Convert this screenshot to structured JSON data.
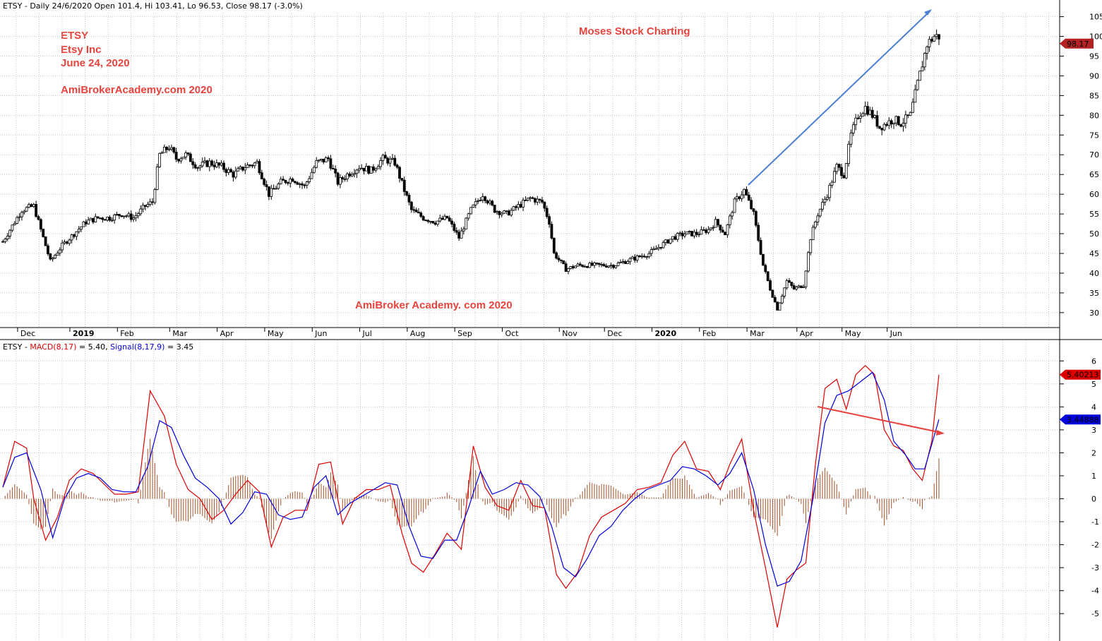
{
  "header": {
    "price": "ETSY - Daily 24/6/2020 Open 101.4, Hi 103.41, Lo 96.53, Close 98.17 (-3.0%)",
    "macd_prefix": "ETSY - ",
    "macd_macd": "MACD(8,17)",
    "macd_macd_val": " = 5.40, ",
    "macd_signal": "Signal(8,17,9)",
    "macd_signal_val": " = 3.45"
  },
  "annotations": {
    "l1": "ETSY",
    "l2": "Etsy Inc",
    "l3": "June 24, 2020",
    "l4": "AmiBrokerAcademy.com  2020",
    "watermark_top": "Moses Stock Charting",
    "watermark_bottom": "AmiBroker Academy. com  2020"
  },
  "colors": {
    "annotation": "#e8423c",
    "macd": "#dd0000",
    "signal": "#0000dd",
    "histogram": "#a0522d",
    "trend_up": "#4a7fd4",
    "trend_down": "#e8423c",
    "last_price_tag": "#b22222",
    "grid": "#c8c8c8"
  },
  "chart_data": [
    {
      "type": "candlestick",
      "symbol": "ETSY",
      "last_value_tag": "98.17",
      "y_ticks": [
        "105",
        "100",
        "95",
        "90",
        "85",
        "80",
        "75",
        "70",
        "65",
        "60",
        "55",
        "50",
        "45",
        "40",
        "35",
        "30"
      ],
      "ylim": [
        28,
        106
      ],
      "x_labels": [
        "Dec",
        "2019",
        "Feb",
        "Mar",
        "Apr",
        "May",
        "Jun",
        "Jul",
        "Aug",
        "Sep",
        "Oct",
        "Nov",
        "Dec",
        "2020",
        "Feb",
        "Mar",
        "Apr",
        "May",
        "Jun"
      ],
      "x_label_pos": [
        0.8,
        3,
        5,
        7.2,
        9.2,
        11.2,
        13.2,
        15.2,
        17.2,
        19.2,
        21.2,
        23.6,
        25.5,
        27.5,
        29.5,
        31.5,
        33.6,
        35.5,
        37.4
      ],
      "close_path": [
        [
          0,
          48
        ],
        [
          0.4,
          52
        ],
        [
          0.8,
          56
        ],
        [
          1.3,
          57
        ],
        [
          1.6,
          51
        ],
        [
          2,
          43
        ],
        [
          2.5,
          47
        ],
        [
          3,
          50
        ],
        [
          3.5,
          53
        ],
        [
          4,
          54
        ],
        [
          4.5,
          54
        ],
        [
          5,
          55
        ],
        [
          5.5,
          54
        ],
        [
          6,
          57
        ],
        [
          6.3,
          58
        ],
        [
          6.6,
          70
        ],
        [
          7,
          72
        ],
        [
          7.3,
          69
        ],
        [
          7.7,
          70
        ],
        [
          8.2,
          67
        ],
        [
          8.7,
          68
        ],
        [
          9.2,
          67
        ],
        [
          9.7,
          65
        ],
        [
          10.2,
          67
        ],
        [
          10.7,
          68
        ],
        [
          11.2,
          60
        ],
        [
          11.7,
          63
        ],
        [
          12.2,
          64
        ],
        [
          12.7,
          62
        ],
        [
          13.2,
          68
        ],
        [
          13.7,
          69
        ],
        [
          14.1,
          63
        ],
        [
          14.5,
          65
        ],
        [
          15,
          67
        ],
        [
          15.5,
          66
        ],
        [
          16,
          69
        ],
        [
          16.5,
          68
        ],
        [
          16.9,
          61
        ],
        [
          17.2,
          56
        ],
        [
          17.7,
          54
        ],
        [
          18.2,
          53
        ],
        [
          18.7,
          54
        ],
        [
          19.2,
          49
        ],
        [
          19.7,
          56
        ],
        [
          20.2,
          60
        ],
        [
          20.7,
          56
        ],
        [
          21.2,
          55
        ],
        [
          21.7,
          57
        ],
        [
          22.2,
          59
        ],
        [
          22.7,
          58
        ],
        [
          23,
          53
        ],
        [
          23.2,
          45
        ],
        [
          23.7,
          41
        ],
        [
          24.2,
          42
        ],
        [
          24.7,
          42
        ],
        [
          25.2,
          42
        ],
        [
          25.7,
          42
        ],
        [
          26.2,
          43
        ],
        [
          26.7,
          44
        ],
        [
          27.2,
          45
        ],
        [
          27.7,
          47
        ],
        [
          28.2,
          49
        ],
        [
          28.7,
          50
        ],
        [
          29.2,
          50
        ],
        [
          29.7,
          51
        ],
        [
          30,
          53
        ],
        [
          30.4,
          50
        ],
        [
          30.8,
          58
        ],
        [
          31.2,
          61
        ],
        [
          31.6,
          55
        ],
        [
          32,
          42
        ],
        [
          32.3,
          36
        ],
        [
          32.6,
          31
        ],
        [
          33,
          38
        ],
        [
          33.3,
          36
        ],
        [
          33.7,
          37
        ],
        [
          34,
          49
        ],
        [
          34.3,
          55
        ],
        [
          34.7,
          60
        ],
        [
          35.1,
          67
        ],
        [
          35.4,
          65
        ],
        [
          35.7,
          75
        ],
        [
          36,
          80
        ],
        [
          36.3,
          82
        ],
        [
          36.6,
          80
        ],
        [
          36.9,
          77
        ],
        [
          37.2,
          78
        ],
        [
          37.5,
          79
        ],
        [
          37.8,
          78
        ],
        [
          38.2,
          80
        ],
        [
          38.5,
          88
        ],
        [
          38.9,
          98
        ],
        [
          39.2,
          100
        ]
      ]
    },
    {
      "type": "line",
      "symbol": "ETSY",
      "last_value_tags": {
        "macd": "5.40213",
        "signal": "3.44888"
      },
      "y_ticks": [
        "6",
        "5",
        "4",
        "3",
        "2",
        "1",
        "0",
        "-1",
        "-2",
        "-3",
        "-4",
        "-5"
      ],
      "ylim": [
        -6.1,
        6.5
      ],
      "series": [
        {
          "name": "MACD(8,17)",
          "points": [
            [
              0,
              0.5
            ],
            [
              0.5,
              2.5
            ],
            [
              1,
              2.2
            ],
            [
              1.3,
              0
            ],
            [
              1.8,
              -1.8
            ],
            [
              2.3,
              -0.8
            ],
            [
              2.8,
              0.8
            ],
            [
              3.3,
              1.3
            ],
            [
              3.8,
              1.1
            ],
            [
              4.3,
              0.6
            ],
            [
              4.7,
              0.2
            ],
            [
              5.2,
              0.2
            ],
            [
              5.7,
              0.3
            ],
            [
              6.2,
              4.7
            ],
            [
              6.8,
              3.6
            ],
            [
              7.3,
              1.5
            ],
            [
              7.8,
              0.4
            ],
            [
              8.3,
              0
            ],
            [
              8.8,
              -0.9
            ],
            [
              9.3,
              -0.5
            ],
            [
              9.8,
              0.2
            ],
            [
              10.3,
              0.8
            ],
            [
              10.8,
              0.3
            ],
            [
              11.3,
              -2.1
            ],
            [
              11.8,
              -0.8
            ],
            [
              12.3,
              -0.5
            ],
            [
              12.8,
              -0.5
            ],
            [
              13.3,
              1.5
            ],
            [
              13.8,
              1.6
            ],
            [
              14.3,
              -1.1
            ],
            [
              14.8,
              0
            ],
            [
              15.3,
              0.4
            ],
            [
              15.8,
              0.4
            ],
            [
              16.3,
              0.6
            ],
            [
              16.8,
              -1.5
            ],
            [
              17.2,
              -2.8
            ],
            [
              17.7,
              -3.2
            ],
            [
              18.2,
              -2.4
            ],
            [
              18.7,
              -1.5
            ],
            [
              19.3,
              -2.2
            ],
            [
              19.8,
              2.3
            ],
            [
              20.3,
              0.5
            ],
            [
              20.8,
              -0.3
            ],
            [
              21.3,
              -0.5
            ],
            [
              21.8,
              0.8
            ],
            [
              22.3,
              -0.3
            ],
            [
              22.8,
              -0.4
            ],
            [
              23.3,
              -3.3
            ],
            [
              23.7,
              -3.9
            ],
            [
              24.2,
              -3.2
            ],
            [
              24.7,
              -1.6
            ],
            [
              25.2,
              -0.8
            ],
            [
              25.7,
              -0.5
            ],
            [
              26.2,
              -0.2
            ],
            [
              26.7,
              0.4
            ],
            [
              27.2,
              0.5
            ],
            [
              27.7,
              0.7
            ],
            [
              28.2,
              1.9
            ],
            [
              28.7,
              2.5
            ],
            [
              29.2,
              1.3
            ],
            [
              29.7,
              1.2
            ],
            [
              30.2,
              0.4
            ],
            [
              30.6,
              1.5
            ],
            [
              31.1,
              2.6
            ],
            [
              31.6,
              -0.5
            ],
            [
              32.1,
              -3
            ],
            [
              32.6,
              -5.6
            ],
            [
              33,
              -3.5
            ],
            [
              33.4,
              -3.1
            ],
            [
              33.8,
              -2.8
            ],
            [
              34.2,
              1.5
            ],
            [
              34.6,
              4.8
            ],
            [
              35.1,
              5.2
            ],
            [
              35.5,
              3.9
            ],
            [
              35.9,
              5.4
            ],
            [
              36.3,
              5.8
            ],
            [
              36.7,
              5.4
            ],
            [
              37.1,
              3
            ],
            [
              37.5,
              2.3
            ],
            [
              37.9,
              2.1
            ],
            [
              38.3,
              1.3
            ],
            [
              38.7,
              0.8
            ],
            [
              39.1,
              2.5
            ],
            [
              39.4,
              5.4
            ]
          ]
        },
        {
          "name": "Signal(8,17,9)",
          "points": [
            [
              0,
              0.5
            ],
            [
              0.5,
              1.8
            ],
            [
              1,
              2
            ],
            [
              1.6,
              0.4
            ],
            [
              2.1,
              -1.7
            ],
            [
              2.6,
              0
            ],
            [
              3.1,
              0.9
            ],
            [
              3.6,
              1.1
            ],
            [
              4.1,
              0.9
            ],
            [
              4.6,
              0.4
            ],
            [
              5.1,
              0.3
            ],
            [
              5.6,
              0.3
            ],
            [
              6.1,
              1.4
            ],
            [
              6.6,
              3.4
            ],
            [
              7.1,
              3.1
            ],
            [
              7.6,
              1.9
            ],
            [
              8.1,
              0.9
            ],
            [
              8.6,
              0.5
            ],
            [
              9.1,
              0
            ],
            [
              9.6,
              -1.1
            ],
            [
              10.1,
              -0.6
            ],
            [
              10.6,
              0.3
            ],
            [
              11.1,
              0.2
            ],
            [
              11.6,
              -0.7
            ],
            [
              12.1,
              -0.9
            ],
            [
              12.6,
              -0.8
            ],
            [
              13.1,
              0.5
            ],
            [
              13.6,
              1
            ],
            [
              14.1,
              -0.7
            ],
            [
              14.6,
              -0.2
            ],
            [
              15.1,
              0.1
            ],
            [
              15.6,
              0.4
            ],
            [
              16.1,
              0.7
            ],
            [
              16.6,
              0.6
            ],
            [
              17.1,
              -1.2
            ],
            [
              17.6,
              -2.5
            ],
            [
              18.1,
              -2.6
            ],
            [
              18.6,
              -1.8
            ],
            [
              19.1,
              -1.8
            ],
            [
              19.6,
              -0.4
            ],
            [
              20.1,
              1.2
            ],
            [
              20.6,
              0.2
            ],
            [
              21.1,
              0.4
            ],
            [
              21.6,
              0.7
            ],
            [
              22.1,
              0.6
            ],
            [
              22.6,
              0.1
            ],
            [
              23.1,
              -1.2
            ],
            [
              23.6,
              -3
            ],
            [
              24.1,
              -3.4
            ],
            [
              24.6,
              -2.6
            ],
            [
              25.1,
              -1.6
            ],
            [
              25.6,
              -1.2
            ],
            [
              26.1,
              -0.5
            ],
            [
              26.6,
              0
            ],
            [
              27.1,
              0.4
            ],
            [
              27.6,
              0.6
            ],
            [
              28.1,
              0.8
            ],
            [
              28.6,
              1.4
            ],
            [
              29.1,
              1.3
            ],
            [
              29.6,
              1
            ],
            [
              30.1,
              0.6
            ],
            [
              30.6,
              1.1
            ],
            [
              31.1,
              2
            ],
            [
              31.6,
              0.4
            ],
            [
              32.1,
              -2
            ],
            [
              32.6,
              -3.8
            ],
            [
              33.1,
              -3.6
            ],
            [
              33.6,
              -2.7
            ],
            [
              34.1,
              0
            ],
            [
              34.6,
              3.3
            ],
            [
              35.1,
              4.5
            ],
            [
              35.6,
              4.7
            ],
            [
              36.1,
              5.1
            ],
            [
              36.6,
              5.5
            ],
            [
              37.1,
              4.3
            ],
            [
              37.5,
              2.5
            ],
            [
              38,
              1.9
            ],
            [
              38.4,
              1.3
            ],
            [
              38.8,
              1.3
            ],
            [
              39.4,
              3.45
            ]
          ]
        }
      ]
    }
  ]
}
